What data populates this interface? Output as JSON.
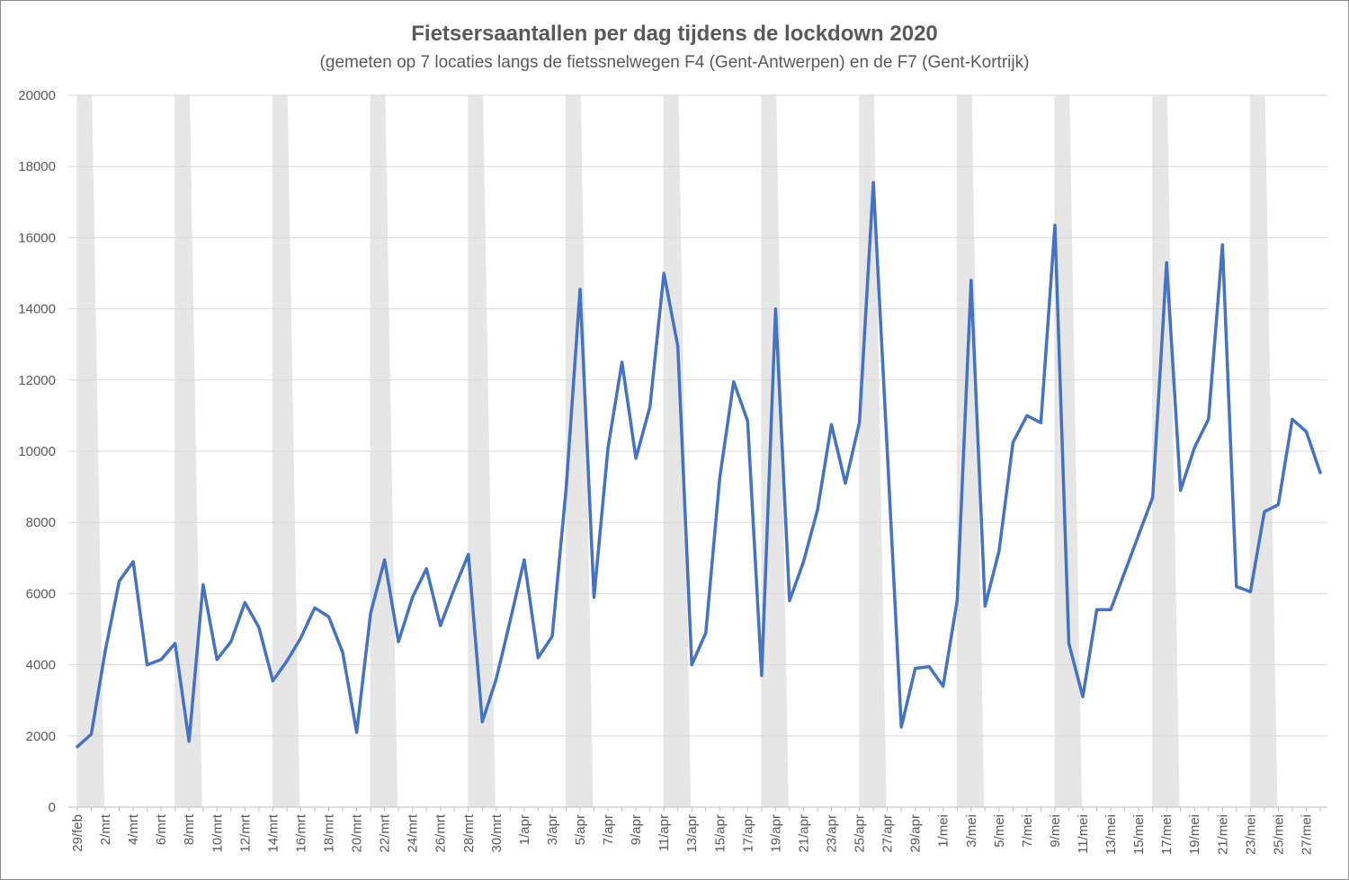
{
  "chart_data": {
    "type": "line",
    "title": "Fietsersaantallen per dag tijdens de lockdown 2020",
    "subtitle": "(gemeten op 7 locaties langs de fietssnelwegen F4 (Gent-Antwerpen) en de F7 (Gent-Kortrijk)",
    "xlabel": "",
    "ylabel": "",
    "ylim": [
      0,
      20000
    ],
    "yticks": [
      0,
      2000,
      4000,
      6000,
      8000,
      10000,
      12000,
      14000,
      16000,
      18000,
      20000
    ],
    "grid": true,
    "legend": "none",
    "line_color": "#4472c4",
    "weekend_band_color": "#e7e6e6",
    "weekend_bands_start_index": [
      0,
      7,
      14,
      21,
      28,
      35,
      42,
      49,
      56,
      63,
      70,
      77,
      84
    ],
    "x": [
      "29/feb",
      "1/mrt",
      "2/mrt",
      "3/mrt",
      "4/mrt",
      "5/mrt",
      "6/mrt",
      "7/mrt",
      "8/mrt",
      "9/mrt",
      "10/mrt",
      "11/mrt",
      "12/mrt",
      "13/mrt",
      "14/mrt",
      "15/mrt",
      "16/mrt",
      "17/mrt",
      "18/mrt",
      "19/mrt",
      "20/mrt",
      "21/mrt",
      "22/mrt",
      "23/mrt",
      "24/mrt",
      "25/mrt",
      "26/mrt",
      "27/mrt",
      "28/mrt",
      "29/mrt",
      "30/mrt",
      "31/mrt",
      "1/apr",
      "2/apr",
      "3/apr",
      "4/apr",
      "5/apr",
      "6/apr",
      "7/apr",
      "8/apr",
      "9/apr",
      "10/apr",
      "11/apr",
      "12/apr",
      "13/apr",
      "14/apr",
      "15/apr",
      "16/apr",
      "17/apr",
      "18/apr",
      "19/apr",
      "20/apr",
      "21/apr",
      "22/apr",
      "23/apr",
      "24/apr",
      "25/apr",
      "26/apr",
      "27/apr",
      "28/apr",
      "29/apr",
      "30/apr",
      "1/mei",
      "2/mei",
      "3/mei",
      "4/mei",
      "5/mei",
      "6/mei",
      "7/mei",
      "8/mei",
      "9/mei",
      "10/mei",
      "11/mei",
      "12/mei",
      "13/mei",
      "14/mei",
      "15/mei",
      "16/mei",
      "17/mei",
      "18/mei",
      "19/mei",
      "20/mei",
      "21/mei",
      "22/mei",
      "23/mei",
      "24/mei",
      "25/mei",
      "26/mei",
      "27/mei",
      "28/mei"
    ],
    "x_tick_labels": [
      "29/feb",
      "2/mrt",
      "4/mrt",
      "6/mrt",
      "8/mrt",
      "10/mrt",
      "12/mrt",
      "14/mrt",
      "16/mrt",
      "18/mrt",
      "20/mrt",
      "22/mrt",
      "24/mrt",
      "26/mrt",
      "28/mrt",
      "30/mrt",
      "1/apr",
      "3/apr",
      "5/apr",
      "7/apr",
      "9/apr",
      "11/apr",
      "13/apr",
      "15/apr",
      "17/apr",
      "19/apr",
      "21/apr",
      "23/apr",
      "25/apr",
      "27/apr",
      "29/apr",
      "1/mei",
      "3/mei",
      "5/mei",
      "7/mei",
      "9/mei",
      "11/mei",
      "13/mei",
      "15/mei",
      "17/mei",
      "19/mei",
      "21/mei",
      "23/mei",
      "25/mei",
      "27/mei"
    ],
    "series": [
      {
        "values": [
          1700,
          2050,
          4400,
          6350,
          6900,
          4000,
          4150,
          4600,
          1850,
          6250,
          4150,
          4650,
          5750,
          5050,
          3550,
          4100,
          4750,
          5600,
          5350,
          4350,
          2100,
          5450,
          6950,
          4650,
          5900,
          6700,
          5100,
          6150,
          7100,
          2400,
          3600,
          5250,
          6950,
          4200,
          4800,
          8950,
          14550,
          5900,
          10100,
          12500,
          9800,
          11250,
          15000,
          12950,
          4000,
          4900,
          9250,
          11950,
          10850,
          3700,
          14000,
          5800,
          6900,
          8350,
          10750,
          9100,
          10800,
          17550,
          10000,
          2250,
          3900,
          3950,
          3400,
          5800,
          14800,
          5650,
          7200,
          10250,
          11000,
          10800,
          16350,
          4600,
          3100,
          5550,
          5550,
          6600,
          7650,
          8700,
          15300,
          8900,
          10100,
          10900,
          15800,
          6200,
          6050,
          8300,
          8500,
          10900,
          10550,
          9400
        ]
      }
    ]
  }
}
